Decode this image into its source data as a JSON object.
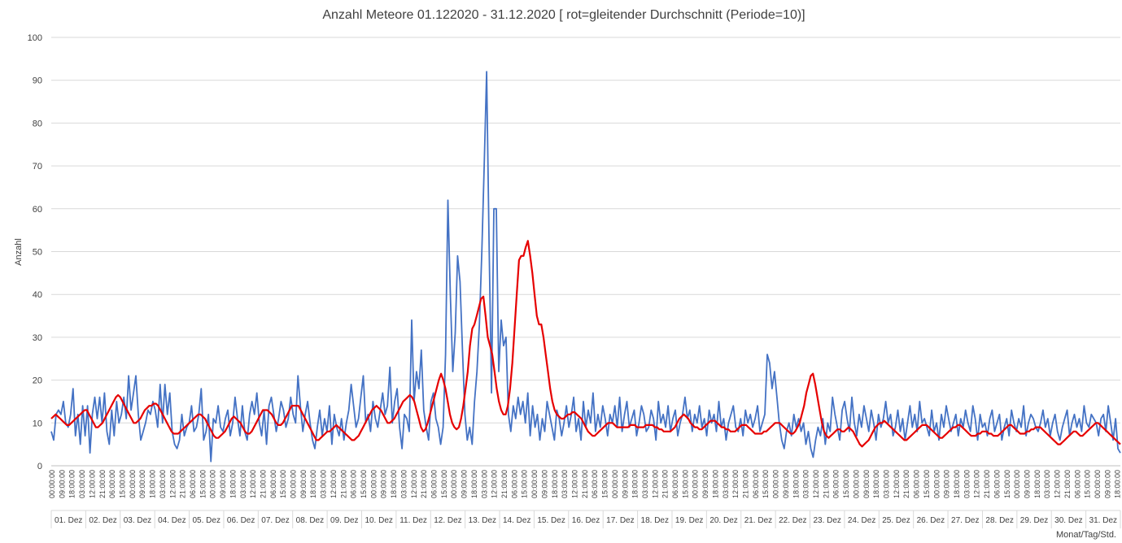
{
  "chart_data": {
    "type": "line",
    "title": "Anzahl Meteore 01.122020 - 31.12.2020 [ rot=gleitender Durchschnitt (Periode=10)]",
    "xlabel": "Monat/Tag/Std.",
    "ylabel": "Anzahl",
    "ylim": [
      0,
      100
    ],
    "yticks": [
      0,
      10,
      20,
      30,
      40,
      50,
      60,
      70,
      80,
      90,
      100
    ],
    "grid": true,
    "days": [
      "01. Dez",
      "02. Dez",
      "03. Dez",
      "04. Dez",
      "05. Dez",
      "06. Dez",
      "07. Dez",
      "08. Dez",
      "09. Dez",
      "10. Dez",
      "11. Dez",
      "12. Dez",
      "13. Dez",
      "14. Dez",
      "15. Dez",
      "16. Dez",
      "17. Dez",
      "18. Dez",
      "19. Dez",
      "20. Dez",
      "21. Dez",
      "22. Dez",
      "23. Dez",
      "24. Dez",
      "25. Dez",
      "26. Dez",
      "27. Dez",
      "28. Dez",
      "29. Dez",
      "30. Dez",
      "31. Dez"
    ],
    "time_tick_labels": [
      "00:00:00",
      "09:00:00",
      "18:00:00",
      "03:00:00",
      "12:00:00",
      "21:00:00",
      "06:00:00",
      "15:00:00",
      "00:00:00",
      "09:00:00",
      "18:00:00",
      "03:00:00",
      "12:00:00",
      "21:00:00",
      "06:00:00",
      "15:00:00",
      "00:00:00",
      "09:00:00",
      "18:00:00",
      "03:00:00",
      "12:00:00",
      "21:00:00",
      "06:00:00",
      "15:00:00",
      "00:00:00",
      "09:00:00",
      "18:00:00",
      "03:00:00",
      "12:00:00",
      "21:00:00",
      "06:00:00",
      "15:00:00",
      "00:00:00",
      "09:00:00",
      "18:00:00",
      "03:00:00",
      "12:00:00",
      "21:00:00",
      "06:00:00",
      "15:00:00",
      "00:00:00",
      "09:00:00",
      "18:00:00",
      "03:00:00",
      "12:00:00",
      "21:00:00",
      "06:00:00",
      "15:00:00",
      "00:00:00",
      "09:00:00",
      "18:00:00",
      "03:00:00",
      "12:00:00",
      "21:00:00",
      "06:00:00",
      "15:00:00",
      "00:00:00",
      "09:00:00",
      "18:00:00",
      "03:00:00",
      "12:00:00",
      "21:00:00",
      "06:00:00",
      "15:00:00",
      "00:00:00",
      "09:00:00",
      "18:00:00",
      "03:00:00",
      "12:00:00",
      "21:00:00",
      "06:00:00",
      "15:00:00",
      "00:00:00",
      "09:00:00",
      "18:00:00",
      "03:00:00",
      "12:00:00",
      "21:00:00",
      "06:00:00",
      "15:00:00",
      "00:00:00",
      "09:00:00",
      "18:00:00",
      "03:00:00",
      "12:00:00",
      "21:00:00",
      "06:00:00",
      "15:00:00",
      "00:00:00",
      "09:00:00",
      "18:00:00",
      "03:00:00",
      "12:00:00",
      "21:00:00",
      "06:00:00",
      "15:00:00",
      "00:00:00",
      "09:00:00",
      "18:00:00",
      "03:00:00",
      "12:00:00",
      "21:00:00",
      "06:00:00",
      "15:00:00",
      "00:00:00",
      "09:00:00",
      "18:00:00"
    ],
    "series": [
      {
        "color": "#4472C4",
        "values": [
          8,
          6,
          12,
          13,
          12,
          15,
          10,
          9,
          12,
          18,
          7,
          12,
          5,
          14,
          7,
          14,
          3,
          12,
          16,
          11,
          16,
          10,
          17,
          8,
          5,
          13,
          7,
          15,
          10,
          12,
          16,
          11,
          21,
          13,
          17,
          21,
          12,
          6,
          8,
          10,
          13,
          12,
          15,
          13,
          9,
          19,
          10,
          19,
          12,
          17,
          8,
          5,
          4,
          6,
          12,
          7,
          9,
          10,
          14,
          8,
          9,
          12,
          18,
          6,
          8,
          12,
          1,
          11,
          10,
          14,
          9,
          8,
          11,
          13,
          7,
          10,
          16,
          11,
          7,
          14,
          8,
          6,
          12,
          15,
          12,
          17,
          10,
          7,
          13,
          5,
          14,
          16,
          12,
          8,
          11,
          15,
          13,
          9,
          11,
          16,
          12,
          10,
          21,
          14,
          8,
          12,
          15,
          10,
          6,
          4,
          9,
          13,
          7,
          11,
          8,
          14,
          5,
          12,
          9,
          7,
          11,
          6,
          10,
          13,
          19,
          14,
          9,
          11,
          16,
          21,
          10,
          12,
          8,
          15,
          11,
          9,
          13,
          17,
          12,
          14,
          23,
          10,
          15,
          18,
          9,
          4,
          12,
          11,
          8,
          34,
          15,
          22,
          18,
          27,
          13,
          9,
          6,
          15,
          17,
          11,
          9,
          5,
          9,
          26,
          62,
          40,
          22,
          31,
          49,
          43,
          27,
          12,
          6,
          9,
          5,
          15,
          22,
          33,
          50,
          70,
          92,
          52,
          17,
          60,
          60,
          22,
          34,
          28,
          30,
          12,
          8,
          14,
          11,
          16,
          12,
          15,
          10,
          17,
          7,
          14,
          9,
          12,
          6,
          11,
          8,
          15,
          12,
          9,
          6,
          13,
          11,
          7,
          10,
          14,
          9,
          12,
          16,
          8,
          11,
          6,
          15,
          9,
          13,
          10,
          17,
          8,
          12,
          9,
          14,
          11,
          7,
          12,
          10,
          14,
          9,
          16,
          8,
          12,
          15,
          9,
          11,
          13,
          7,
          10,
          14,
          12,
          8,
          9,
          13,
          11,
          6,
          15,
          10,
          12,
          9,
          14,
          8,
          11,
          13,
          7,
          10,
          12,
          16,
          11,
          13,
          8,
          12,
          10,
          14,
          9,
          11,
          7,
          13,
          10,
          12,
          8,
          15,
          9,
          11,
          6,
          10,
          12,
          14,
          9,
          8,
          11,
          7,
          13,
          10,
          12,
          9,
          11,
          14,
          8,
          10,
          12,
          26,
          24,
          18,
          22,
          16,
          10,
          6,
          4,
          8,
          10,
          7,
          12,
          9,
          11,
          8,
          10,
          5,
          8,
          4,
          2,
          6,
          9,
          7,
          11,
          5,
          10,
          8,
          16,
          12,
          9,
          6,
          13,
          15,
          11,
          8,
          16,
          10,
          7,
          12,
          9,
          14,
          11,
          8,
          13,
          10,
          6,
          12,
          9,
          11,
          15,
          10,
          12,
          7,
          9,
          13,
          8,
          11,
          6,
          10,
          14,
          9,
          12,
          8,
          15,
          10,
          11,
          9,
          7,
          13,
          8,
          10,
          6,
          12,
          9,
          14,
          11,
          8,
          10,
          12,
          7,
          11,
          9,
          13,
          10,
          8,
          14,
          11,
          6,
          12,
          9,
          10,
          7,
          11,
          13,
          8,
          10,
          12,
          6,
          9,
          11,
          7,
          13,
          10,
          8,
          11,
          9,
          14,
          7,
          10,
          12,
          11,
          9,
          8,
          10,
          13,
          9,
          11,
          7,
          10,
          12,
          8,
          6,
          9,
          11,
          13,
          7,
          10,
          12,
          9,
          11,
          8,
          14,
          10,
          9,
          12,
          11,
          10,
          7,
          11,
          12,
          8,
          14,
          10,
          6,
          11,
          4,
          3
        ]
      },
      {
        "color": "#E60000",
        "values": [
          11,
          11.5,
          12,
          11.5,
          11,
          10.5,
          10,
          9.5,
          9.5,
          10,
          10.5,
          11,
          11.5,
          12,
          12.5,
          13,
          13,
          12,
          11,
          10,
          9,
          9,
          9.5,
          10,
          11,
          12,
          13,
          14,
          15,
          16,
          16.5,
          16,
          15,
          14,
          13,
          12,
          11,
          10,
          10,
          10.5,
          11,
          12,
          13,
          13.5,
          14,
          14,
          14.5,
          14.5,
          14,
          13,
          12,
          11,
          10,
          9,
          8,
          7.5,
          7.5,
          7.5,
          8,
          8.5,
          9,
          9.5,
          10,
          10.5,
          11,
          11.5,
          12,
          12,
          11.5,
          11,
          10,
          9,
          8,
          7,
          6.5,
          6.5,
          7,
          7.5,
          8,
          9,
          10,
          11,
          11.5,
          11,
          10.5,
          10,
          9,
          8,
          7.5,
          7.5,
          8,
          9,
          10,
          11,
          12,
          13,
          13,
          13,
          12.5,
          12,
          11,
          10,
          9.5,
          9.5,
          10,
          11,
          12,
          13,
          14,
          14,
          14,
          14,
          13,
          12,
          11,
          10,
          9,
          8,
          7,
          6,
          6,
          6.5,
          7,
          7.5,
          8,
          8,
          8.5,
          9,
          9.5,
          9,
          8.5,
          8,
          7.5,
          7,
          6.5,
          6,
          6,
          6.5,
          7,
          8,
          9,
          10,
          11,
          12,
          13,
          13.5,
          14,
          13.5,
          13,
          12,
          11,
          10,
          10,
          10.5,
          11,
          12,
          13,
          14,
          15,
          15.5,
          16,
          16.5,
          16,
          15,
          13,
          11,
          9,
          8,
          8.5,
          10,
          12,
          14,
          16,
          18,
          20,
          21.5,
          20,
          18,
          15,
          12,
          10,
          9,
          8.5,
          9,
          11,
          14,
          18,
          22,
          28,
          32,
          33,
          35,
          37,
          39,
          39.5,
          35,
          30,
          28,
          26,
          22,
          18,
          15,
          13,
          12,
          12,
          14,
          18,
          24,
          32,
          40,
          48,
          49,
          49,
          51,
          52.5,
          49,
          45,
          40,
          35,
          33,
          33,
          30,
          26,
          22,
          18,
          15,
          13,
          12,
          11.5,
          11,
          11,
          11.5,
          12,
          12,
          12.5,
          12.5,
          12,
          11.5,
          11,
          10,
          9,
          8,
          7.5,
          7,
          7,
          7.5,
          8,
          8.5,
          9,
          9.5,
          10,
          10,
          10,
          9.5,
          9,
          9,
          9,
          9,
          9,
          9,
          9.5,
          9.5,
          9.5,
          9,
          9,
          9,
          9,
          9.5,
          9.5,
          9.5,
          9.5,
          9,
          9,
          8.5,
          8.5,
          8,
          8,
          8,
          8,
          8.5,
          9,
          10,
          11,
          11.5,
          12,
          11.5,
          11,
          10,
          9.5,
          9,
          9,
          8.5,
          8.5,
          9,
          9.5,
          10,
          10.5,
          10.5,
          10.5,
          10,
          9.5,
          9,
          9,
          8.5,
          8.5,
          8,
          8,
          8,
          8.5,
          9,
          9.5,
          9.5,
          9.5,
          9,
          8.5,
          8,
          7.5,
          7.5,
          7.5,
          7.5,
          8,
          8,
          8.5,
          9,
          9.5,
          10,
          10,
          10,
          9.5,
          9,
          8.5,
          8,
          7.5,
          7.5,
          8,
          9,
          10,
          12,
          14,
          17,
          19,
          21,
          21.5,
          19,
          16,
          13,
          10,
          8,
          7,
          6.5,
          7,
          7.5,
          8,
          8.5,
          8.5,
          8,
          8,
          8.5,
          9,
          8.5,
          8,
          7,
          6,
          5,
          4.5,
          5,
          5.5,
          6,
          7,
          8,
          9,
          9.5,
          10,
          10,
          10.5,
          10,
          9.5,
          9,
          8.5,
          8,
          7.5,
          7,
          6.5,
          6,
          6,
          6.5,
          7,
          7.5,
          8,
          8.5,
          9,
          9.5,
          9.5,
          9.5,
          9,
          8.5,
          8,
          7.5,
          7,
          6.5,
          6.5,
          7,
          7.5,
          8,
          8.5,
          9,
          9,
          9.5,
          9.5,
          9,
          8.5,
          8,
          7.5,
          7,
          7,
          7,
          7.5,
          7.5,
          8,
          8,
          8,
          7.5,
          7.5,
          7,
          7,
          7,
          7.5,
          8,
          8.5,
          9,
          9.5,
          9.5,
          9,
          8.5,
          8,
          7.5,
          7.5,
          7.5,
          8,
          8,
          8.5,
          8.5,
          9,
          9,
          9,
          8.5,
          8,
          7.5,
          7,
          6.5,
          6,
          5.5,
          5,
          5,
          5.5,
          6,
          6.5,
          7,
          7.5,
          8,
          8,
          7.5,
          7,
          7,
          7.5,
          8,
          8.5,
          9,
          9.5,
          10,
          10,
          9.5,
          9,
          8.5,
          8,
          7.5,
          7,
          6.5,
          6,
          5.5,
          5
        ]
      }
    ]
  }
}
